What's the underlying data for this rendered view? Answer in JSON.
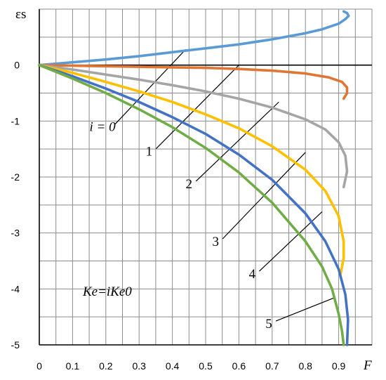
{
  "chart_data": {
    "type": "line",
    "ylabel": "εs",
    "xlabel": "F",
    "xlim": [
      0,
      1
    ],
    "ylim": [
      -5,
      1
    ],
    "x_ticks": [
      0,
      0.1,
      0.2,
      0.3,
      0.4,
      0.5,
      0.6,
      0.7,
      0.8,
      0.9
    ],
    "x_tick_labels": [
      "0",
      "0.1",
      "0.2",
      "0.3",
      "0.4",
      "0.5",
      "0.6",
      "0.7",
      "0.8",
      "0.9"
    ],
    "y_ticks": [
      0,
      -1,
      -2,
      -3,
      -4,
      -5
    ],
    "y_tick_labels": [
      "0",
      "-1",
      "-2",
      "-3",
      "-4",
      "-5"
    ],
    "grid": true,
    "annotation": "Ke=iKe0",
    "series": [
      {
        "name": "i = 0",
        "color": "#5B9BD5",
        "points": [
          [
            0,
            0
          ],
          [
            0.1,
            0.05
          ],
          [
            0.2,
            0.1
          ],
          [
            0.3,
            0.16
          ],
          [
            0.4,
            0.23
          ],
          [
            0.5,
            0.3
          ],
          [
            0.6,
            0.37
          ],
          [
            0.7,
            0.46
          ],
          [
            0.8,
            0.57
          ],
          [
            0.85,
            0.64
          ],
          [
            0.9,
            0.74
          ],
          [
            0.92,
            0.82
          ],
          [
            0.93,
            0.88
          ],
          [
            0.925,
            0.93
          ],
          [
            0.915,
            0.96
          ]
        ],
        "pointer_at": [
          0.44,
          0.28
        ],
        "label_at": [
          0.19,
          -1.18
        ]
      },
      {
        "name": "1",
        "color": "#E07633",
        "points": [
          [
            0,
            0
          ],
          [
            0.1,
            -0.01
          ],
          [
            0.2,
            -0.02
          ],
          [
            0.3,
            -0.03
          ],
          [
            0.4,
            -0.04
          ],
          [
            0.5,
            -0.05
          ],
          [
            0.6,
            -0.07
          ],
          [
            0.7,
            -0.1
          ],
          [
            0.8,
            -0.15
          ],
          [
            0.87,
            -0.22
          ],
          [
            0.91,
            -0.3
          ],
          [
            0.925,
            -0.4
          ],
          [
            0.925,
            -0.5
          ],
          [
            0.915,
            -0.6
          ]
        ],
        "pointer_at": [
          0.6,
          0.0
        ],
        "label_at": [
          0.33,
          -1.62
        ]
      },
      {
        "name": "2",
        "color": "#A5A5A5",
        "points": [
          [
            0,
            0
          ],
          [
            0.1,
            -0.08
          ],
          [
            0.2,
            -0.17
          ],
          [
            0.3,
            -0.26
          ],
          [
            0.4,
            -0.36
          ],
          [
            0.5,
            -0.47
          ],
          [
            0.6,
            -0.6
          ],
          [
            0.7,
            -0.76
          ],
          [
            0.8,
            -0.97
          ],
          [
            0.86,
            -1.15
          ],
          [
            0.9,
            -1.38
          ],
          [
            0.92,
            -1.62
          ],
          [
            0.925,
            -1.9
          ],
          [
            0.915,
            -2.18
          ]
        ],
        "pointer_at": [
          0.72,
          -0.66
        ],
        "label_at": [
          0.45,
          -2.2
        ]
      },
      {
        "name": "3",
        "color": "#FFC000",
        "points": [
          [
            0,
            0
          ],
          [
            0.1,
            -0.14
          ],
          [
            0.2,
            -0.3
          ],
          [
            0.3,
            -0.47
          ],
          [
            0.4,
            -0.66
          ],
          [
            0.5,
            -0.88
          ],
          [
            0.6,
            -1.13
          ],
          [
            0.7,
            -1.45
          ],
          [
            0.8,
            -1.87
          ],
          [
            0.86,
            -2.25
          ],
          [
            0.9,
            -2.7
          ],
          [
            0.915,
            -3.15
          ],
          [
            0.915,
            -3.45
          ],
          [
            0.905,
            -3.75
          ]
        ],
        "pointer_at": [
          0.8,
          -1.56
        ],
        "label_at": [
          0.53,
          -3.23
        ]
      },
      {
        "name": "4",
        "color": "#4472C4",
        "points": [
          [
            0,
            0
          ],
          [
            0.1,
            -0.2
          ],
          [
            0.2,
            -0.42
          ],
          [
            0.3,
            -0.66
          ],
          [
            0.4,
            -0.93
          ],
          [
            0.5,
            -1.23
          ],
          [
            0.6,
            -1.6
          ],
          [
            0.7,
            -2.05
          ],
          [
            0.8,
            -2.65
          ],
          [
            0.86,
            -3.15
          ],
          [
            0.9,
            -3.65
          ],
          [
            0.92,
            -4.1
          ],
          [
            0.928,
            -4.55
          ],
          [
            0.925,
            -5.0
          ]
        ],
        "pointer_at": [
          0.85,
          -2.62
        ],
        "label_at": [
          0.64,
          -3.81
        ]
      },
      {
        "name": "5",
        "color": "#70AD47",
        "points": [
          [
            0,
            0
          ],
          [
            0.1,
            -0.24
          ],
          [
            0.2,
            -0.5
          ],
          [
            0.3,
            -0.79
          ],
          [
            0.4,
            -1.11
          ],
          [
            0.5,
            -1.48
          ],
          [
            0.6,
            -1.92
          ],
          [
            0.7,
            -2.46
          ],
          [
            0.8,
            -3.15
          ],
          [
            0.85,
            -3.6
          ],
          [
            0.88,
            -4.0
          ],
          [
            0.9,
            -4.45
          ],
          [
            0.91,
            -4.75
          ],
          [
            0.915,
            -5.0
          ]
        ],
        "pointer_at": [
          0.89,
          -4.15
        ],
        "label_at": [
          0.69,
          -4.7
        ]
      }
    ]
  }
}
